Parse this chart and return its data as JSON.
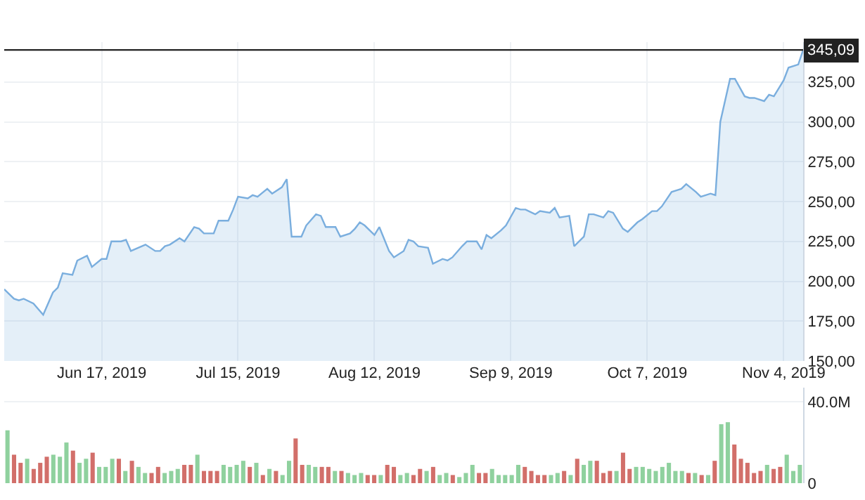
{
  "chart_data": [
    {
      "type": "area",
      "color": "#7aaede",
      "x": [
        "2019-05-28",
        "2019-05-30",
        "2019-05-31",
        "2019-06-01",
        "2019-06-03",
        "2019-06-05",
        "2019-06-07",
        "2019-06-08",
        "2019-06-09",
        "2019-06-11",
        "2019-06-12",
        "2019-06-14",
        "2019-06-15",
        "2019-06-17",
        "2019-06-18",
        "2019-06-19",
        "2019-06-21",
        "2019-06-22",
        "2019-06-23",
        "2019-06-26",
        "2019-06-28",
        "2019-06-29",
        "2019-06-30",
        "2019-07-01",
        "2019-07-03",
        "2019-07-04",
        "2019-07-06",
        "2019-07-07",
        "2019-07-08",
        "2019-07-10",
        "2019-07-11",
        "2019-07-13",
        "2019-07-14",
        "2019-07-15",
        "2019-07-17",
        "2019-07-18",
        "2019-07-19",
        "2019-07-21",
        "2019-07-22",
        "2019-07-24",
        "2019-07-25",
        "2019-07-26",
        "2019-07-28",
        "2019-07-29",
        "2019-07-31",
        "2019-08-01",
        "2019-08-02",
        "2019-08-04",
        "2019-08-05",
        "2019-08-07",
        "2019-08-08",
        "2019-08-09",
        "2019-08-10",
        "2019-08-12",
        "2019-08-13",
        "2019-08-15",
        "2019-08-16",
        "2019-08-18",
        "2019-08-19",
        "2019-08-20",
        "2019-08-21",
        "2019-08-23",
        "2019-08-24",
        "2019-08-26",
        "2019-08-27",
        "2019-08-28",
        "2019-08-30",
        "2019-08-31",
        "2019-09-02",
        "2019-09-03",
        "2019-09-04",
        "2019-09-05",
        "2019-09-07",
        "2019-09-08",
        "2019-09-10",
        "2019-09-11",
        "2019-09-12",
        "2019-09-14",
        "2019-09-15",
        "2019-09-17",
        "2019-09-18",
        "2019-09-19",
        "2019-09-21",
        "2019-09-22",
        "2019-09-24",
        "2019-09-25",
        "2019-09-26",
        "2019-09-28",
        "2019-09-29",
        "2019-09-30",
        "2019-10-02",
        "2019-10-03",
        "2019-10-05",
        "2019-10-06",
        "2019-10-08",
        "2019-10-09",
        "2019-10-10",
        "2019-10-12",
        "2019-10-13",
        "2019-10-14",
        "2019-10-15",
        "2019-10-17",
        "2019-10-18",
        "2019-10-20",
        "2019-10-21",
        "2019-10-22",
        "2019-10-24",
        "2019-10-25",
        "2019-10-27",
        "2019-10-28",
        "2019-10-29",
        "2019-10-31",
        "2019-11-01",
        "2019-11-02",
        "2019-11-04",
        "2019-11-05",
        "2019-11-07",
        "2019-11-08"
      ],
      "values": [
        195,
        189,
        188,
        189,
        186,
        179,
        193,
        196,
        205,
        204,
        213,
        216,
        209,
        214,
        214,
        225,
        225,
        226,
        219,
        223,
        219,
        219,
        222,
        223,
        227,
        225,
        234,
        233,
        230,
        230,
        238,
        238,
        245,
        253,
        252,
        254,
        253,
        258,
        255,
        259,
        264,
        228,
        228,
        235,
        242,
        241,
        234,
        234,
        228,
        230,
        233,
        237,
        235,
        229,
        234,
        219,
        215,
        219,
        226,
        225,
        222,
        221,
        211,
        214,
        213,
        215,
        222,
        225,
        225,
        220,
        229,
        227,
        232,
        235,
        246,
        245,
        245,
        242,
        244,
        243,
        246,
        240,
        241,
        222,
        228,
        242,
        242,
        240,
        244,
        243,
        233,
        231,
        237,
        239,
        244,
        244,
        247,
        256,
        257,
        258,
        261,
        256,
        253,
        255,
        254,
        300,
        327,
        327,
        316,
        315,
        315,
        313,
        317,
        316,
        326,
        334,
        336,
        345
      ],
      "xlim": [
        "2019-05-28",
        "2019-11-08"
      ],
      "xticks": [
        {
          "value": "2019-06-17",
          "label": "Jun 17, 2019"
        },
        {
          "value": "2019-07-15",
          "label": "Jul 15, 2019"
        },
        {
          "value": "2019-08-12",
          "label": "Aug 12, 2019"
        },
        {
          "value": "2019-09-09",
          "label": "Sep 9, 2019"
        },
        {
          "value": "2019-10-07",
          "label": "Oct 7, 2019"
        },
        {
          "value": "2019-11-04",
          "label": "Nov 4, 2019"
        }
      ],
      "ylim": [
        150,
        350
      ],
      "yticks": [
        {
          "value": 150,
          "label": "150,00"
        },
        {
          "value": 175,
          "label": "175,00"
        },
        {
          "value": 200,
          "label": "200,00"
        },
        {
          "value": 225,
          "label": "225,00"
        },
        {
          "value": 250,
          "label": "250,00"
        },
        {
          "value": 275,
          "label": "275,00"
        },
        {
          "value": 300,
          "label": "300,00"
        },
        {
          "value": 325,
          "label": "325,00"
        }
      ],
      "grid": true,
      "ref_lines": [
        {
          "axis": "y",
          "value": 345.09,
          "label": "345,09",
          "color": "#222222"
        }
      ]
    },
    {
      "type": "bar",
      "tick_labels": "y",
      "grid": true,
      "categories": [
        null,
        null,
        null,
        null,
        null,
        null,
        null,
        null,
        null,
        null,
        null,
        null,
        null,
        null,
        null,
        null,
        null,
        null,
        null,
        null,
        null,
        null,
        null,
        null,
        null,
        null,
        null,
        null,
        null,
        null,
        null,
        null,
        null,
        null,
        null,
        null,
        null,
        null,
        null,
        null,
        null,
        null,
        null,
        null,
        null,
        null,
        null,
        null,
        null,
        null,
        null,
        null,
        null,
        null,
        null,
        null,
        null,
        null,
        null,
        null,
        null,
        null,
        null,
        null,
        null,
        null,
        null,
        null,
        null,
        null,
        null,
        null,
        null,
        null,
        null,
        null,
        null,
        null,
        null,
        null,
        null,
        null,
        null,
        null,
        null,
        null,
        null,
        null,
        null,
        null,
        null,
        null,
        null,
        null,
        null,
        null,
        null,
        null,
        null,
        null,
        null,
        null,
        null,
        null,
        null,
        null,
        null,
        null,
        null,
        null,
        null,
        null,
        null,
        null,
        null,
        null,
        null,
        null,
        null,
        null,
        null,
        null
      ],
      "values": [
        26,
        14,
        10,
        12,
        7,
        10,
        13,
        14,
        13,
        20,
        16,
        10,
        12,
        15,
        8,
        8,
        12,
        12,
        6,
        11,
        8,
        5,
        5,
        8,
        5,
        6,
        7,
        9,
        9,
        14,
        6,
        6,
        6,
        9,
        8,
        9,
        11,
        8,
        10,
        4,
        7,
        6,
        4,
        11,
        22,
        9,
        9,
        8,
        8,
        8,
        6,
        6,
        5,
        4,
        5,
        4,
        4,
        4,
        9,
        8,
        4,
        5,
        4,
        7,
        6,
        8,
        4,
        5,
        4,
        3,
        5,
        9,
        5,
        5,
        7,
        4,
        4,
        4,
        9,
        8,
        6,
        4,
        4,
        4,
        5,
        6,
        4,
        12,
        9,
        11,
        11,
        5,
        6,
        6,
        15,
        7,
        8,
        8,
        7,
        6,
        8,
        10,
        6,
        6,
        5,
        5,
        4,
        4,
        11,
        29,
        30,
        19,
        12,
        10,
        5,
        6,
        9,
        7,
        8,
        14,
        6,
        9
      ],
      "colors": [
        "#8fd19e",
        "#d26f6a",
        "#d26f6a",
        "#8fd19e",
        "#d26f6a",
        "#d26f6a",
        "#d26f6a",
        "#8fd19e",
        "#8fd19e",
        "#8fd19e",
        "#d26f6a",
        "#8fd19e",
        "#8fd19e",
        "#d26f6a",
        "#8fd19e",
        "#8fd19e",
        "#8fd19e",
        "#d26f6a",
        "#8fd19e",
        "#d26f6a",
        "#8fd19e",
        "#8fd19e",
        "#d26f6a",
        "#d26f6a",
        "#8fd19e",
        "#8fd19e",
        "#8fd19e",
        "#d26f6a",
        "#d26f6a",
        "#8fd19e",
        "#d26f6a",
        "#d26f6a",
        "#d26f6a",
        "#8fd19e",
        "#8fd19e",
        "#8fd19e",
        "#8fd19e",
        "#d26f6a",
        "#8fd19e",
        "#d26f6a",
        "#8fd19e",
        "#d26f6a",
        "#8fd19e",
        "#8fd19e",
        "#d26f6a",
        "#d26f6a",
        "#8fd19e",
        "#8fd19e",
        "#d26f6a",
        "#d26f6a",
        "#8fd19e",
        "#d26f6a",
        "#8fd19e",
        "#8fd19e",
        "#8fd19e",
        "#d26f6a",
        "#d26f6a",
        "#8fd19e",
        "#d26f6a",
        "#d26f6a",
        "#8fd19e",
        "#8fd19e",
        "#d26f6a",
        "#d26f6a",
        "#8fd19e",
        "#d26f6a",
        "#8fd19e",
        "#8fd19e",
        "#d26f6a",
        "#8fd19e",
        "#8fd19e",
        "#8fd19e",
        "#d26f6a",
        "#d26f6a",
        "#8fd19e",
        "#8fd19e",
        "#8fd19e",
        "#8fd19e",
        "#8fd19e",
        "#d26f6a",
        "#d26f6a",
        "#d26f6a",
        "#d26f6a",
        "#8fd19e",
        "#8fd19e",
        "#d26f6a",
        "#8fd19e",
        "#d26f6a",
        "#8fd19e",
        "#8fd19e",
        "#d26f6a",
        "#d26f6a",
        "#d26f6a",
        "#8fd19e",
        "#d26f6a",
        "#d26f6a",
        "#8fd19e",
        "#8fd19e",
        "#8fd19e",
        "#8fd19e",
        "#8fd19e",
        "#8fd19e",
        "#8fd19e",
        "#8fd19e",
        "#d26f6a",
        "#8fd19e",
        "#d26f6a",
        "#8fd19e",
        "#d26f6a",
        "#8fd19e",
        "#8fd19e",
        "#d26f6a",
        "#d26f6a",
        "#d26f6a",
        "#d26f6a",
        "#d26f6a",
        "#8fd19e",
        "#d26f6a",
        "#d26f6a",
        "#8fd19e",
        "#8fd19e",
        "#8fd19e"
      ],
      "ylim": [
        0,
        47
      ],
      "yticks": [
        0,
        {
          "value": 40,
          "label": "40.0M"
        }
      ]
    }
  ]
}
